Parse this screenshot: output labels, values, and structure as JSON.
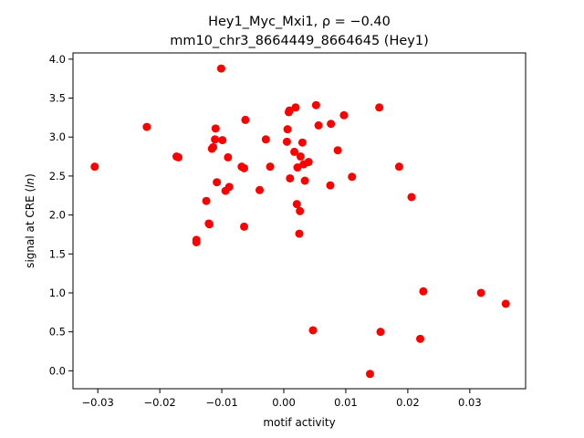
{
  "chart_data": {
    "type": "scatter",
    "title_line1": "Hey1_Myc_Mxi1, ρ = −0.40",
    "title_line2": "mm10_chr3_8664449_8664645 (Hey1)",
    "xlabel": "motif activity",
    "ylabel": "signal at CRE (ln)",
    "xlim": [
      -0.034,
      0.039
    ],
    "ylim": [
      -0.23,
      4.08
    ],
    "xticks": [
      -0.03,
      -0.02,
      -0.01,
      0.0,
      0.01,
      0.02,
      0.03
    ],
    "xtick_labels": [
      "−0.03",
      "−0.02",
      "−0.01",
      "0.00",
      "0.01",
      "0.02",
      "0.03"
    ],
    "yticks": [
      0.0,
      0.5,
      1.0,
      1.5,
      2.0,
      2.5,
      3.0,
      3.5,
      4.0
    ],
    "ytick_labels": [
      "0.0",
      "0.5",
      "1.0",
      "1.5",
      "2.0",
      "2.5",
      "3.0",
      "3.5",
      "4.0"
    ],
    "grid": false,
    "marker_color": "#ff0000",
    "points": [
      {
        "x": -0.0305,
        "y": 2.62
      },
      {
        "x": -0.0221,
        "y": 3.13
      },
      {
        "x": -0.0173,
        "y": 2.75
      },
      {
        "x": -0.017,
        "y": 2.74
      },
      {
        "x": -0.0141,
        "y": 1.68
      },
      {
        "x": -0.0141,
        "y": 1.65
      },
      {
        "x": -0.0125,
        "y": 2.18
      },
      {
        "x": -0.0121,
        "y": 1.89
      },
      {
        "x": -0.012,
        "y": 1.88
      },
      {
        "x": -0.0116,
        "y": 2.85
      },
      {
        "x": -0.0114,
        "y": 2.87
      },
      {
        "x": -0.0111,
        "y": 2.97
      },
      {
        "x": -0.011,
        "y": 3.11
      },
      {
        "x": -0.0108,
        "y": 2.42
      },
      {
        "x": -0.0101,
        "y": 3.88
      },
      {
        "x": -0.0099,
        "y": 2.96
      },
      {
        "x": -0.0094,
        "y": 2.31
      },
      {
        "x": -0.009,
        "y": 2.74
      },
      {
        "x": -0.0088,
        "y": 2.36
      },
      {
        "x": -0.0068,
        "y": 2.62
      },
      {
        "x": -0.0064,
        "y": 2.6
      },
      {
        "x": -0.0064,
        "y": 1.85
      },
      {
        "x": -0.0062,
        "y": 3.22
      },
      {
        "x": -0.0039,
        "y": 2.32
      },
      {
        "x": -0.0029,
        "y": 2.97
      },
      {
        "x": -0.0022,
        "y": 2.62
      },
      {
        "x": 0.0005,
        "y": 2.94
      },
      {
        "x": 0.0006,
        "y": 3.1
      },
      {
        "x": 0.0008,
        "y": 3.32
      },
      {
        "x": 0.0009,
        "y": 3.34
      },
      {
        "x": 0.001,
        "y": 2.47
      },
      {
        "x": 0.0017,
        "y": 2.81
      },
      {
        "x": 0.0019,
        "y": 3.38
      },
      {
        "x": 0.0021,
        "y": 2.14
      },
      {
        "x": 0.0022,
        "y": 2.61
      },
      {
        "x": 0.0025,
        "y": 1.76
      },
      {
        "x": 0.0026,
        "y": 2.05
      },
      {
        "x": 0.0027,
        "y": 2.75
      },
      {
        "x": 0.003,
        "y": 2.93
      },
      {
        "x": 0.0032,
        "y": 2.65
      },
      {
        "x": 0.0034,
        "y": 2.44
      },
      {
        "x": 0.004,
        "y": 2.68
      },
      {
        "x": 0.0047,
        "y": 0.52
      },
      {
        "x": 0.0052,
        "y": 3.41
      },
      {
        "x": 0.0056,
        "y": 3.15
      },
      {
        "x": 0.0075,
        "y": 2.38
      },
      {
        "x": 0.0076,
        "y": 3.17
      },
      {
        "x": 0.0087,
        "y": 2.83
      },
      {
        "x": 0.0097,
        "y": 3.28
      },
      {
        "x": 0.011,
        "y": 2.49
      },
      {
        "x": 0.0139,
        "y": -0.04
      },
      {
        "x": 0.0154,
        "y": 3.38
      },
      {
        "x": 0.0156,
        "y": 0.5
      },
      {
        "x": 0.0186,
        "y": 2.62
      },
      {
        "x": 0.0206,
        "y": 2.23
      },
      {
        "x": 0.022,
        "y": 0.41
      },
      {
        "x": 0.0225,
        "y": 1.02
      },
      {
        "x": 0.0318,
        "y": 1.0
      },
      {
        "x": 0.0358,
        "y": 0.86
      }
    ]
  }
}
